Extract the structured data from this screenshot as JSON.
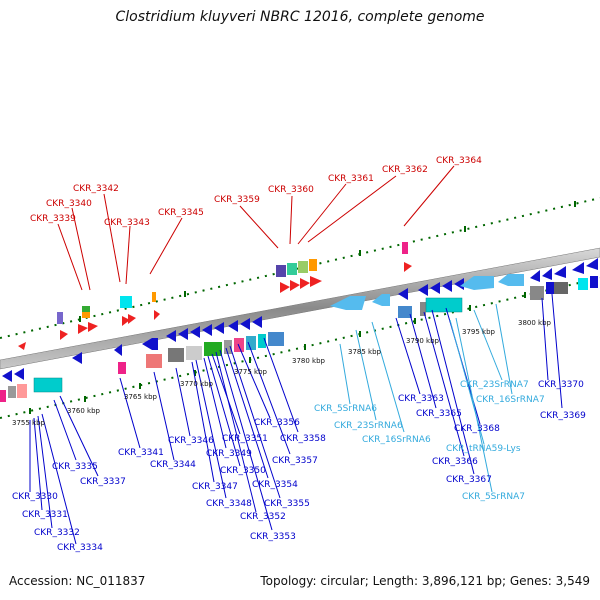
{
  "title": "Clostridium kluyveri NBRC 12016, complete genome",
  "footer": {
    "accession": "Accession: NC_011837",
    "summary": "Topology: circular; Length: 3,896,121 bp; Genes: 3,549"
  },
  "colors": {
    "red_labels": "#cc0000",
    "blue_labels": "#0000cc",
    "rna_labels": "#33aadd",
    "backbone": "#999999",
    "dotted_track": "#006600"
  },
  "kbp_ticks": [
    "3755 kbp",
    "3760 kbp",
    "3765 kbp",
    "3770 kbp",
    "3775 kbp",
    "3780 kbp",
    "3785 kbp",
    "3790 kbp",
    "3795 kbp",
    "3800 kbp"
  ],
  "top_labels": [
    "CKR_3339",
    "CKR_3340",
    "CKR_3342",
    "CKR_3343",
    "CKR_3345",
    "CKR_3359",
    "CKR_3360",
    "CKR_3361",
    "CKR_3362",
    "CKR_3364"
  ],
  "bottom_labels": [
    "CKR_3330",
    "CKR_3331",
    "CKR_3332",
    "CKR_3334",
    "CKR_3335",
    "CKR_3337",
    "CKR_3341",
    "CKR_3344",
    "CKR_3346",
    "CKR_3347",
    "CKR_3348",
    "CKR_3349",
    "CKR_3350",
    "CKR_3351",
    "CKR_3352",
    "CKR_3353",
    "CKR_3354",
    "CKR_3355",
    "CKR_3356",
    "CKR_3357",
    "CKR_3358",
    "CKR_5SrRNA6",
    "CKR_23SrRNA6",
    "CKR_16SrRNA6",
    "CKR_3363",
    "CKR_3365",
    "CKR_3366",
    "CKR_3367",
    "CKR_3368",
    "CKR_tRNA59-Lys",
    "CKR_5SrRNA7",
    "CKR_23SrRNA7",
    "CKR_16SrRNA7",
    "CKR_3369",
    "CKR_3370"
  ]
}
